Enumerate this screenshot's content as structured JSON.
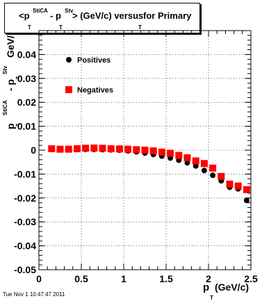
{
  "title": {
    "p": "<p",
    "sup1": "StiCA",
    "sub1": "T",
    "minus": "- p",
    "sup2": "Stv",
    "sub2": "T",
    "rest": "> (GeV/c) versus",
    "sub3": "T",
    "tail": "for Primary"
  },
  "datestamp": "Tue Nov  1 10:47:47 2011",
  "chart_data": {
    "type": "scatter",
    "xlim": [
      0,
      2.5
    ],
    "ylim": [
      -0.05,
      0.05
    ],
    "grid": true,
    "legend_position": "top-left",
    "xlabel": {
      "main": "p",
      "sub": "T",
      "unit": "(GeV/c)"
    },
    "ylabel": {
      "p1": "p",
      "sup1": "StiCA",
      "sub1": "T",
      "minus": "- p",
      "sup2": "Stv",
      "sub2": "T",
      "unit": "GeV/"
    },
    "x_ticks": [
      0,
      0.5,
      1,
      1.5,
      2,
      2.5
    ],
    "x_tick_labels": [
      "0",
      "0.5",
      "1",
      "1.5",
      "2",
      "2.5"
    ],
    "y_ticks": [
      -0.05,
      -0.04,
      -0.03,
      -0.02,
      -0.01,
      0,
      0.01,
      0.02,
      0.03,
      0.04
    ],
    "y_tick_labels": [
      "-0.05",
      "-0.04",
      "-0.03",
      "-0.02",
      "-0.01",
      "0",
      "0.01",
      "0.02",
      "0.03",
      "0.04"
    ],
    "series": [
      {
        "name": "Positives",
        "marker": "circle",
        "color": "#000000",
        "x": [
          0.15,
          0.25,
          0.35,
          0.45,
          0.55,
          0.65,
          0.75,
          0.85,
          0.95,
          1.05,
          1.15,
          1.25,
          1.35,
          1.45,
          1.55,
          1.65,
          1.75,
          1.85,
          1.95,
          2.05,
          2.15,
          2.25,
          2.35,
          2.45
        ],
        "y": [
          0.0003,
          0.0001,
          0.0001,
          0.0002,
          0.0003,
          0.0003,
          0.0002,
          0.0001,
          0.0,
          -0.0003,
          -0.0007,
          -0.0012,
          -0.0018,
          -0.0025,
          -0.0033,
          -0.0042,
          -0.0053,
          -0.0066,
          -0.0085,
          -0.0105,
          -0.0128,
          -0.0155,
          -0.0162,
          -0.021
        ]
      },
      {
        "name": "Negatives",
        "marker": "square",
        "color": "#ff0000",
        "x": [
          0.15,
          0.25,
          0.35,
          0.45,
          0.55,
          0.65,
          0.75,
          0.85,
          0.95,
          1.05,
          1.15,
          1.25,
          1.35,
          1.45,
          1.55,
          1.65,
          1.75,
          1.85,
          1.95,
          2.05,
          2.15,
          2.25,
          2.35,
          2.45
        ],
        "y": [
          0.0006,
          0.0004,
          0.0004,
          0.0006,
          0.0008,
          0.0009,
          0.0008,
          0.0006,
          0.0005,
          0.0004,
          0.0002,
          0.0,
          -0.0003,
          -0.0008,
          -0.0013,
          -0.0022,
          -0.0032,
          -0.0045,
          -0.0056,
          -0.0075,
          -0.011,
          -0.0142,
          -0.015,
          -0.0165
        ]
      }
    ]
  }
}
